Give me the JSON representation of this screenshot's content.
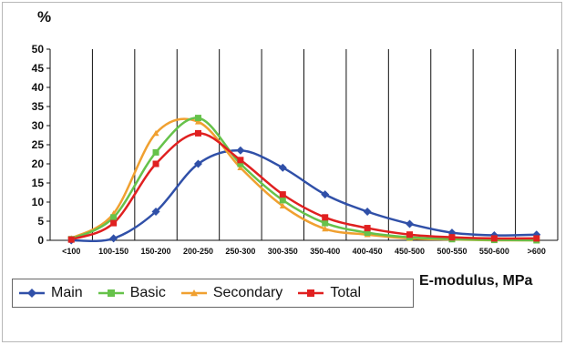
{
  "chart_data": {
    "type": "line",
    "ylabel": "%",
    "xlabel": "E-modulus, MPa",
    "ylim": [
      0,
      50
    ],
    "yticks": [
      0,
      5,
      10,
      15,
      20,
      25,
      30,
      35,
      40,
      45,
      50
    ],
    "grid": "vertical",
    "legend": "bottom-left",
    "categories": [
      "<100",
      "100-150",
      "150-200",
      "200-250",
      "250-300",
      "300-350",
      "350-400",
      "400-450",
      "450-500",
      "500-550",
      "550-600",
      ">600"
    ],
    "series": [
      {
        "name": "Main",
        "color": "#3050a8",
        "marker": "diamond",
        "values": [
          0,
          0.5,
          7.5,
          20,
          23.5,
          19,
          12,
          7.5,
          4.3,
          2,
          1.3,
          1.5
        ]
      },
      {
        "name": "Basic",
        "color": "#66c24a",
        "marker": "square",
        "values": [
          0.3,
          6,
          23,
          32,
          20,
          10.5,
          4.5,
          2,
          0.8,
          0.3,
          0.1,
          0
        ]
      },
      {
        "name": "Secondary",
        "color": "#f0a030",
        "marker": "triangle",
        "values": [
          0.5,
          7,
          28,
          31,
          19,
          9,
          3,
          1.5,
          0.5,
          0.2,
          0,
          0
        ]
      },
      {
        "name": "Total",
        "color": "#e02020",
        "marker": "square",
        "values": [
          0.2,
          4.5,
          20,
          28,
          21,
          12,
          6,
          3.2,
          1.5,
          0.8,
          0.5,
          0.5
        ]
      }
    ]
  }
}
